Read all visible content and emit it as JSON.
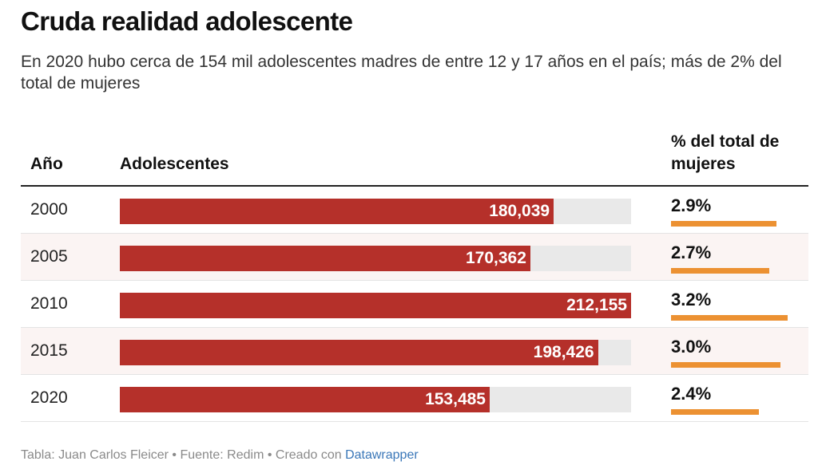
{
  "title": "Cruda realidad adolescente",
  "subtitle": "En 2020 hubo cerca de 154 mil adolescentes madres de entre 12 y 17 años en el país; más de 2% del total de mujeres",
  "columns": {
    "year": "Año",
    "adolescents": "Adolescentes",
    "percent": "% del total de mujeres"
  },
  "colors": {
    "bar": "#b5302a",
    "bar_track": "#e9e9e9",
    "percent_bar": "#ec9132"
  },
  "chart_data": {
    "type": "table",
    "columns": [
      "Año",
      "Adolescentes",
      "% del total de mujeres"
    ],
    "rows": [
      {
        "year": "2000",
        "adolescents": 180039,
        "adolescents_label": "180,039",
        "percent": 2.9,
        "percent_label": "2.9%"
      },
      {
        "year": "2005",
        "adolescents": 170362,
        "adolescents_label": "170,362",
        "percent": 2.7,
        "percent_label": "2.7%"
      },
      {
        "year": "2010",
        "adolescents": 212155,
        "adolescents_label": "212,155",
        "percent": 3.2,
        "percent_label": "3.2%"
      },
      {
        "year": "2015",
        "adolescents": 198426,
        "adolescents_label": "198,426",
        "percent": 3.0,
        "percent_label": "3.0%"
      },
      {
        "year": "2020",
        "adolescents": 153485,
        "adolescents_label": "153,485",
        "percent": 2.4,
        "percent_label": "2.4%"
      }
    ],
    "adolescents_max": 212155,
    "percent_max": 3.2
  },
  "footer": {
    "text": "Tabla: Juan Carlos Fleicer  • Fuente: Redim • Creado con ",
    "link": "Datawrapper"
  }
}
